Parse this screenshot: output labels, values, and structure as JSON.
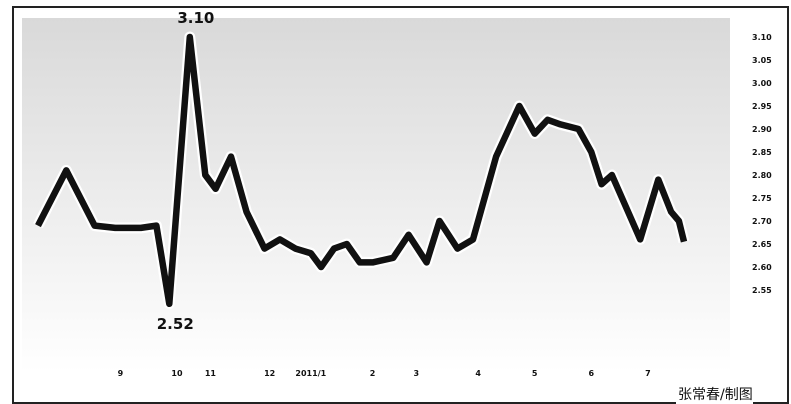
{
  "chart_data": {
    "type": "line",
    "title": "",
    "xlabel": "",
    "ylabel": "",
    "ylim": [
      2.5,
      3.1
    ],
    "y_ticks": [
      "3.10",
      "3.05",
      "3.00",
      "2.95",
      "2.90",
      "2.85",
      "2.80",
      "2.75",
      "2.70",
      "2.65",
      "2.60",
      "2.55"
    ],
    "y_tick_values": [
      3.1,
      3.05,
      3.0,
      2.95,
      2.9,
      2.85,
      2.8,
      2.75,
      2.7,
      2.65,
      2.6,
      2.55
    ],
    "x_ticks": [
      "9",
      "10",
      "11",
      "12",
      "2011/1",
      "2",
      "3",
      "4",
      "5",
      "6",
      "7"
    ],
    "x_tick_values": [
      3.2,
      5.4,
      6.7,
      9.0,
      10.6,
      13.0,
      14.7,
      17.1,
      19.3,
      21.5,
      23.7
    ],
    "x_range": [
      0,
      25.8
    ],
    "series": [
      {
        "values": [
          [
            0.0,
            2.69
          ],
          [
            1.1,
            2.81
          ],
          [
            2.2,
            2.69
          ],
          [
            3.0,
            2.685
          ],
          [
            4.0,
            2.685
          ],
          [
            4.6,
            2.69
          ],
          [
            5.1,
            2.52
          ],
          [
            5.9,
            3.1
          ],
          [
            6.5,
            2.8
          ],
          [
            6.9,
            2.77
          ],
          [
            7.5,
            2.84
          ],
          [
            8.1,
            2.72
          ],
          [
            8.8,
            2.64
          ],
          [
            9.4,
            2.66
          ],
          [
            10.0,
            2.64
          ],
          [
            10.6,
            2.63
          ],
          [
            11.0,
            2.6
          ],
          [
            11.5,
            2.64
          ],
          [
            12.0,
            2.65
          ],
          [
            12.5,
            2.61
          ],
          [
            13.0,
            2.61
          ],
          [
            13.8,
            2.62
          ],
          [
            14.4,
            2.67
          ],
          [
            15.1,
            2.61
          ],
          [
            15.6,
            2.7
          ],
          [
            16.3,
            2.64
          ],
          [
            16.9,
            2.66
          ],
          [
            17.8,
            2.84
          ],
          [
            18.7,
            2.95
          ],
          [
            19.3,
            2.89
          ],
          [
            19.8,
            2.92
          ],
          [
            20.3,
            2.91
          ],
          [
            21.0,
            2.9
          ],
          [
            21.5,
            2.85
          ],
          [
            21.9,
            2.78
          ],
          [
            22.3,
            2.8
          ],
          [
            23.4,
            2.66
          ],
          [
            24.1,
            2.79
          ],
          [
            24.6,
            2.72
          ],
          [
            24.9,
            2.7
          ],
          [
            25.1,
            2.655
          ]
        ]
      }
    ],
    "annotations": [
      {
        "text": "3.10",
        "x": 5.9,
        "y": 3.1
      },
      {
        "text": "2.52",
        "x": 5.1,
        "y": 2.52
      }
    ],
    "grid": false,
    "line_color": "#111111",
    "line_outline_color": "#ffffff",
    "background_gradient": [
      "#d9d9d9",
      "#ffffff"
    ]
  },
  "credit": "张常春/制图"
}
